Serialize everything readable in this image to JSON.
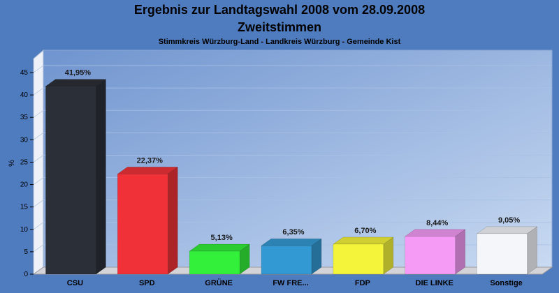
{
  "chart_data": {
    "type": "bar",
    "title": "Ergebnis zur Landtagswahl 2008 vom 28.09.2008",
    "subtitle": "Zweitstimmen",
    "caption": "Stimmkreis Würzburg-Land - Landkreis Würzburg - Gemeinde Kist",
    "ylabel": "%",
    "xlabel": "",
    "ylim": [
      0,
      45
    ],
    "yticks": [
      0,
      5,
      10,
      15,
      20,
      25,
      30,
      35,
      40,
      45
    ],
    "grid": true,
    "legend": "none",
    "categories": [
      "CSU",
      "SPD",
      "GRÜNE",
      "FW FRE...",
      "FDP",
      "DIE LINKE",
      "Sonstige"
    ],
    "values": [
      41.95,
      22.37,
      5.13,
      6.35,
      6.7,
      8.44,
      9.05
    ],
    "value_labels": [
      "41,95%",
      "22,37%",
      "5,13%",
      "6,35%",
      "6,70%",
      "8,44%",
      "9,05%"
    ],
    "colors": [
      "#2b2f37",
      "#f03238",
      "#33f03a",
      "#3399d2",
      "#f4f43a",
      "#f59af5",
      "#f4f6fa"
    ]
  }
}
